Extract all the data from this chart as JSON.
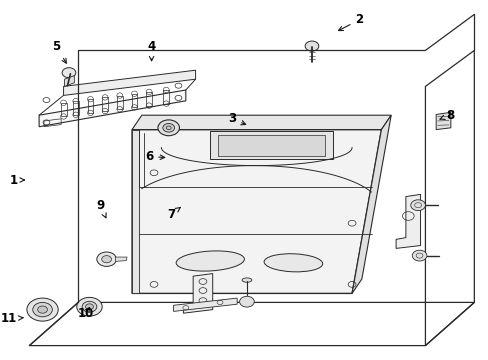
{
  "background_color": "#ffffff",
  "line_color": "#2a2a2a",
  "figsize": [
    4.89,
    3.6
  ],
  "dpi": 100,
  "label_configs": {
    "1": [
      0.028,
      0.5,
      0.058,
      0.5
    ],
    "2": [
      0.735,
      0.945,
      0.685,
      0.91
    ],
    "3": [
      0.475,
      0.67,
      0.51,
      0.65
    ],
    "4": [
      0.31,
      0.87,
      0.31,
      0.82
    ],
    "5": [
      0.115,
      0.87,
      0.14,
      0.815
    ],
    "6": [
      0.305,
      0.565,
      0.345,
      0.562
    ],
    "7": [
      0.35,
      0.405,
      0.375,
      0.43
    ],
    "8": [
      0.92,
      0.68,
      0.898,
      0.668
    ],
    "9": [
      0.205,
      0.43,
      0.22,
      0.385
    ],
    "10": [
      0.175,
      0.13,
      0.188,
      0.155
    ],
    "11": [
      0.018,
      0.115,
      0.055,
      0.118
    ]
  }
}
